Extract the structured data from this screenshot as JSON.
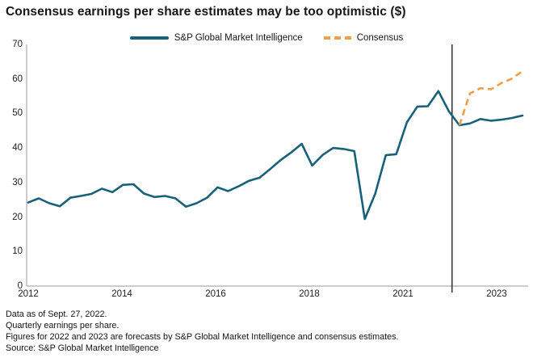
{
  "title": "Consensus earnings per share estimates may be too optimistic ($)",
  "legend": {
    "sp_label": "S&P Global Market Intelligence",
    "consensus_label": "Consensus"
  },
  "colors": {
    "sp_line": "#17617a",
    "consensus_line": "#ef9f4a",
    "axis": "#9a9a9a",
    "divider": "#000000"
  },
  "footnotes": [
    "Data as of Sept. 27, 2022.",
    "Quarterly earnings per share.",
    "Figures for 2022 and 2023 are forecasts by S&P Global Market Intelligence and consensus estimates.",
    "Source: S&P Global Market Intelligence"
  ],
  "chart_data": {
    "type": "line",
    "title": "Consensus earnings per share estimates may be too optimistic ($)",
    "ylabel": "",
    "xlabel": "",
    "ylim": [
      0,
      70
    ],
    "grid": false,
    "legend_position": "top",
    "y_ticks": [
      "70",
      "60",
      "50",
      "40",
      "30",
      "20",
      "10",
      "0"
    ],
    "x_tick_labels": [
      "2012",
      "2014",
      "2016",
      "2018",
      "2021",
      "2023"
    ],
    "categories": [
      "2012 Q1",
      "2012 Q2",
      "2012 Q3",
      "2012 Q4",
      "2013 Q1",
      "2013 Q2",
      "2013 Q3",
      "2013 Q4",
      "2014 Q1",
      "2014 Q2",
      "2014 Q3",
      "2014 Q4",
      "2015 Q1",
      "2015 Q2",
      "2015 Q3",
      "2015 Q4",
      "2016 Q1",
      "2016 Q2",
      "2016 Q3",
      "2016 Q4",
      "2017 Q1",
      "2017 Q2",
      "2017 Q3",
      "2017 Q4",
      "2018 Q1",
      "2018 Q2",
      "2018 Q3",
      "2018 Q4",
      "2019 Q1",
      "2019 Q2",
      "2019 Q3",
      "2019 Q4",
      "2020 Q1",
      "2020 Q2",
      "2020 Q3",
      "2020 Q4",
      "2021 Q1",
      "2021 Q2",
      "2021 Q3",
      "2021 Q4",
      "2022 Q1",
      "2022 Q2",
      "2022 Q3",
      "2022 Q4",
      "2023 Q1",
      "2023 Q2",
      "2023 Q3",
      "2023 Q4"
    ],
    "series": [
      {
        "name": "S&P Global Market Intelligence",
        "line": "solid",
        "start_index": 0,
        "values": [
          24.2,
          25.4,
          24.0,
          23.1,
          25.6,
          26.1,
          26.7,
          28.2,
          27.2,
          29.3,
          29.5,
          26.8,
          25.8,
          26.1,
          25.4,
          23.0,
          24.0,
          25.6,
          28.6,
          27.5,
          28.9,
          30.5,
          31.4,
          33.9,
          36.5,
          38.7,
          41.2,
          34.9,
          38.0,
          40.0,
          39.7,
          39.1,
          19.4,
          26.8,
          37.9,
          38.2,
          47.4,
          52.0,
          52.1,
          56.5,
          50.6,
          46.6,
          47.1,
          48.4,
          47.9,
          48.2,
          48.7,
          49.4
        ]
      },
      {
        "name": "Consensus",
        "line": "dashed",
        "start_index": 41,
        "values": [
          46.6,
          55.8,
          57.3,
          57.0,
          58.8,
          60.1,
          62.3
        ]
      }
    ],
    "forecast_divider": {
      "between": [
        "2022 Q1",
        "2022 Q2"
      ],
      "index": 40.3,
      "note": "black vertical rule marking start of forecast period"
    }
  }
}
